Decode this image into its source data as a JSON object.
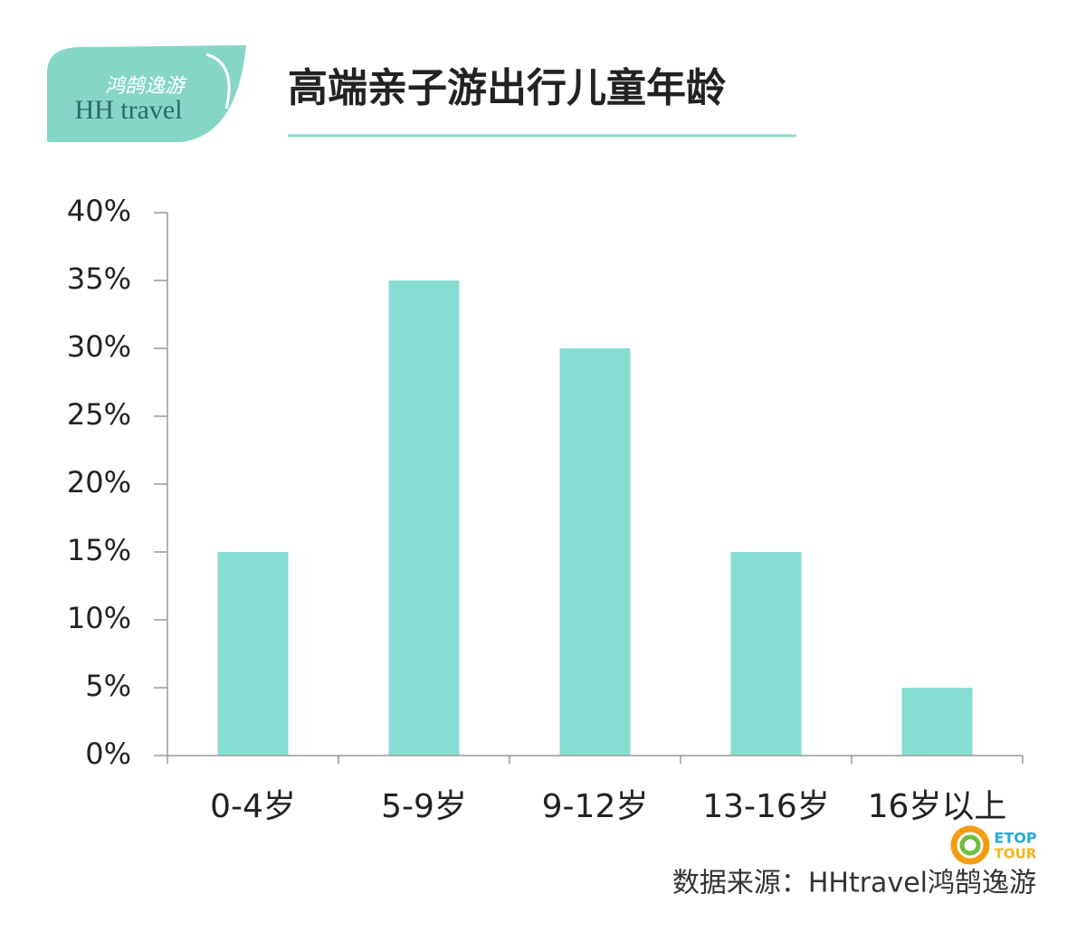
{
  "chart_data": {
    "type": "bar",
    "title": "高端亲子游出行儿童年龄",
    "categories": [
      "0-4岁",
      "5-9岁",
      "9-12岁",
      "13-16岁",
      "16岁以上"
    ],
    "values": [
      15,
      35,
      30,
      15,
      5
    ],
    "color": "#86ddd2",
    "ylim": [
      0,
      40
    ],
    "yticks": [
      {
        "value": 0,
        "label": "0%"
      },
      {
        "value": 5,
        "label": "5%"
      },
      {
        "value": 10,
        "label": "10%"
      },
      {
        "value": 15,
        "label": "15%"
      },
      {
        "value": 20,
        "label": "20%"
      },
      {
        "value": 25,
        "label": "25%"
      },
      {
        "value": 30,
        "label": "30%"
      },
      {
        "value": 35,
        "label": "35%"
      },
      {
        "value": 40,
        "label": "40%"
      }
    ],
    "grid": false,
    "source": "数据来源：HHtravel鸿鹄逸游"
  },
  "logo": {
    "chinese": "鸿鹄逸游",
    "english": "HH travel"
  },
  "etop_logo": {
    "top": "ETOP",
    "bottom": "TOUR"
  }
}
